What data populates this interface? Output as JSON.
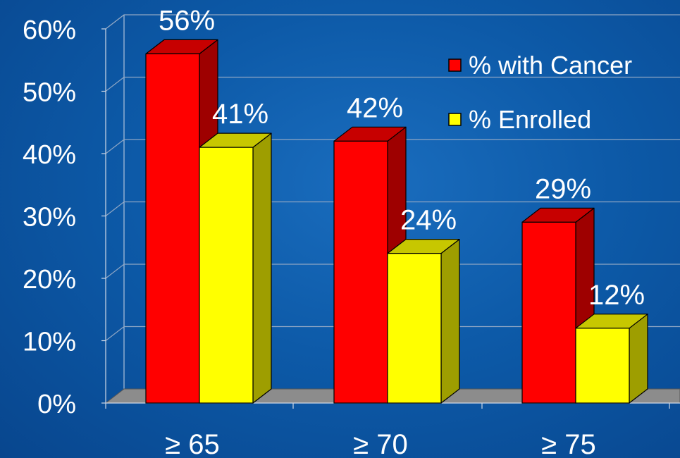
{
  "chart_data": {
    "type": "bar",
    "style": "3d-clustered",
    "categories": [
      "≥ 65",
      "≥ 70",
      "≥ 75"
    ],
    "series": [
      {
        "name": "% with Cancer",
        "values": [
          56,
          42,
          29
        ],
        "labels": [
          "56%",
          "42%",
          "29%"
        ],
        "color": "#ff0000"
      },
      {
        "name": "% Enrolled",
        "values": [
          41,
          24,
          12
        ],
        "labels": [
          "41%",
          "24%",
          "12%"
        ],
        "color": "#ffff00"
      }
    ],
    "yticks": [
      "0%",
      "10%",
      "20%",
      "30%",
      "40%",
      "50%",
      "60%"
    ],
    "ylim": [
      0,
      60
    ],
    "grid": true,
    "legend_position": "top-right",
    "background_color": "#0d5aa8"
  }
}
